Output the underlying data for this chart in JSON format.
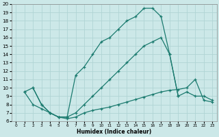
{
  "xlabel": "Humidex (Indice chaleur)",
  "bg_color": "#cce8e8",
  "grid_color": "#b0d4d4",
  "line_color": "#1a7a6e",
  "xlim": [
    -0.5,
    23.5
  ],
  "ylim": [
    6,
    20
  ],
  "xticks": [
    0,
    1,
    2,
    3,
    4,
    5,
    6,
    7,
    8,
    9,
    10,
    11,
    12,
    13,
    14,
    15,
    16,
    17,
    18,
    19,
    20,
    21,
    22,
    23
  ],
  "yticks": [
    6,
    7,
    8,
    9,
    10,
    11,
    12,
    13,
    14,
    15,
    16,
    17,
    18,
    19,
    20
  ],
  "curve_upper_x": [
    2,
    3,
    4,
    5,
    6,
    7,
    8,
    9,
    10,
    11,
    12,
    13,
    14,
    15,
    16,
    17,
    18,
    19
  ],
  "curve_upper_y": [
    10,
    8,
    7,
    6.5,
    6.5,
    11.5,
    12.5,
    14,
    15.5,
    16,
    17,
    18,
    18.5,
    19.5,
    19.5,
    18.5,
    14,
    9
  ],
  "curve_mid_x": [
    1,
    2,
    3,
    4,
    5,
    6,
    7,
    8,
    9,
    10,
    11,
    12,
    13,
    14,
    15,
    16,
    17,
    18,
    19,
    20,
    21,
    22,
    23
  ],
  "curve_mid_y": [
    9.5,
    10,
    8,
    7,
    6.5,
    6.5,
    7,
    8,
    9,
    10,
    11,
    12,
    13,
    14,
    15,
    15.5,
    16,
    14,
    9,
    9.5,
    9,
    9,
    8.5
  ],
  "curve_lower_x": [
    1,
    2,
    3,
    4,
    5,
    6,
    7,
    8,
    9,
    10,
    11,
    12,
    13,
    14,
    15,
    16,
    17,
    18,
    19,
    20,
    21,
    22,
    23
  ],
  "curve_lower_y": [
    9.5,
    8,
    7.5,
    7,
    6.5,
    6.3,
    6.5,
    7,
    7.3,
    7.5,
    7.7,
    8,
    8.3,
    8.6,
    8.9,
    9.2,
    9.5,
    9.7,
    9.8,
    10,
    11,
    8.5,
    8.3
  ]
}
